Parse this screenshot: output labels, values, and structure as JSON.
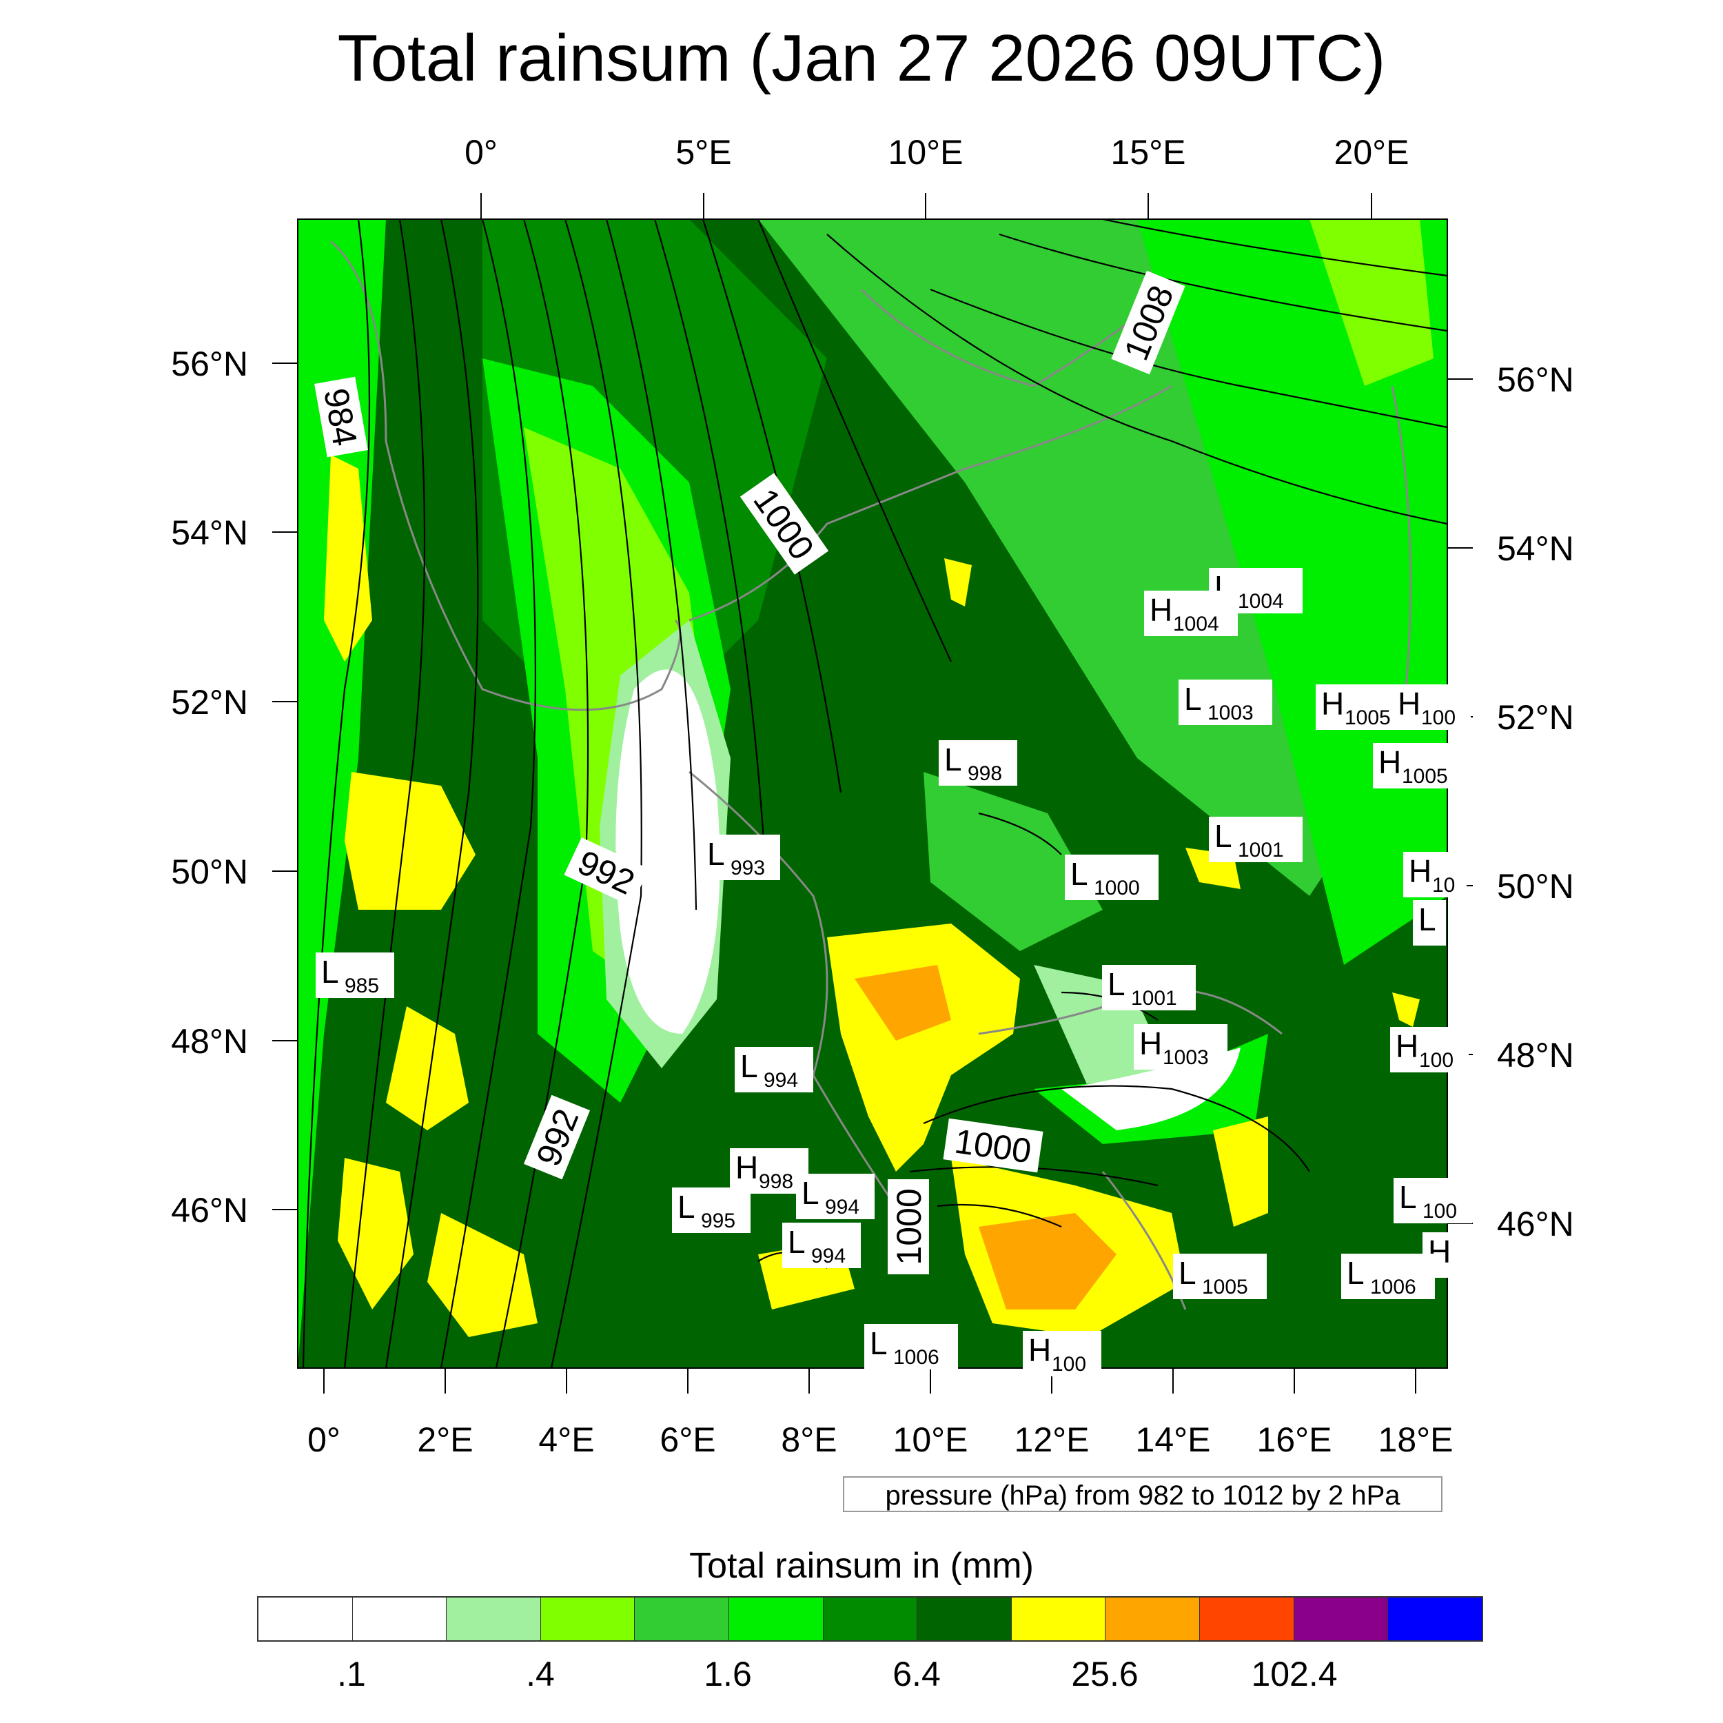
{
  "title": "Total rainsum (Jan 27 2026 09UTC)",
  "top_axis_labels": [
    "0°",
    "5°E",
    "10°E",
    "15°E",
    "20°E"
  ],
  "bottom_axis_labels": [
    "0°",
    "2°E",
    "4°E",
    "6°E",
    "8°E",
    "10°E",
    "12°E",
    "14°E",
    "16°E",
    "18°E"
  ],
  "left_axis_labels": [
    "56°N",
    "54°N",
    "52°N",
    "50°N",
    "48°N",
    "46°N"
  ],
  "right_axis_labels": [
    "56°N",
    "54°N",
    "52°N",
    "50°N",
    "48°N",
    "46°N"
  ],
  "isobar_labels": [
    "984",
    "1000",
    "992",
    "992",
    "1008",
    "1000",
    "1000"
  ],
  "pressure_centers": [
    {
      "type": "L",
      "value": "1004"
    },
    {
      "type": "H",
      "value": "1004"
    },
    {
      "type": "L",
      "value": "1003"
    },
    {
      "type": "H",
      "value": "1005"
    },
    {
      "type": "H",
      "value": "100"
    },
    {
      "type": "H",
      "value": "1005"
    },
    {
      "type": "L",
      "value": "998"
    },
    {
      "type": "L",
      "value": "1001"
    },
    {
      "type": "L",
      "value": "993"
    },
    {
      "type": "L",
      "value": "1000"
    },
    {
      "type": "H",
      "value": "10"
    },
    {
      "type": "L",
      "value": ""
    },
    {
      "type": "L",
      "value": "985"
    },
    {
      "type": "L",
      "value": "1001"
    },
    {
      "type": "H",
      "value": "1003"
    },
    {
      "type": "H",
      "value": "100"
    },
    {
      "type": "L",
      "value": "994"
    },
    {
      "type": "H",
      "value": "998"
    },
    {
      "type": "L",
      "value": "994"
    },
    {
      "type": "L",
      "value": "995"
    },
    {
      "type": "L",
      "value": "994"
    },
    {
      "type": "L",
      "value": "100"
    },
    {
      "type": "H",
      "value": ""
    },
    {
      "type": "L",
      "value": "1005"
    },
    {
      "type": "L",
      "value": "1006"
    },
    {
      "type": "L",
      "value": "1006"
    },
    {
      "type": "H",
      "value": "100"
    }
  ],
  "contour_note": "pressure (hPa) from 982 to 1012 by 2 hPa",
  "colorbar": {
    "title": "Total rainsum in (mm)",
    "colors": [
      "#ffffff",
      "#ffffff",
      "#a0f0a0",
      "#80ff00",
      "#32cd32",
      "#00ee00",
      "#008b00",
      "#006400",
      "#ffff00",
      "#ffa500",
      "#ff4500",
      "#8b008b",
      "#0000ff"
    ],
    "tick_labels": [
      ".1",
      ".4",
      "1.6",
      "6.4",
      "25.6",
      "102.4"
    ]
  }
}
